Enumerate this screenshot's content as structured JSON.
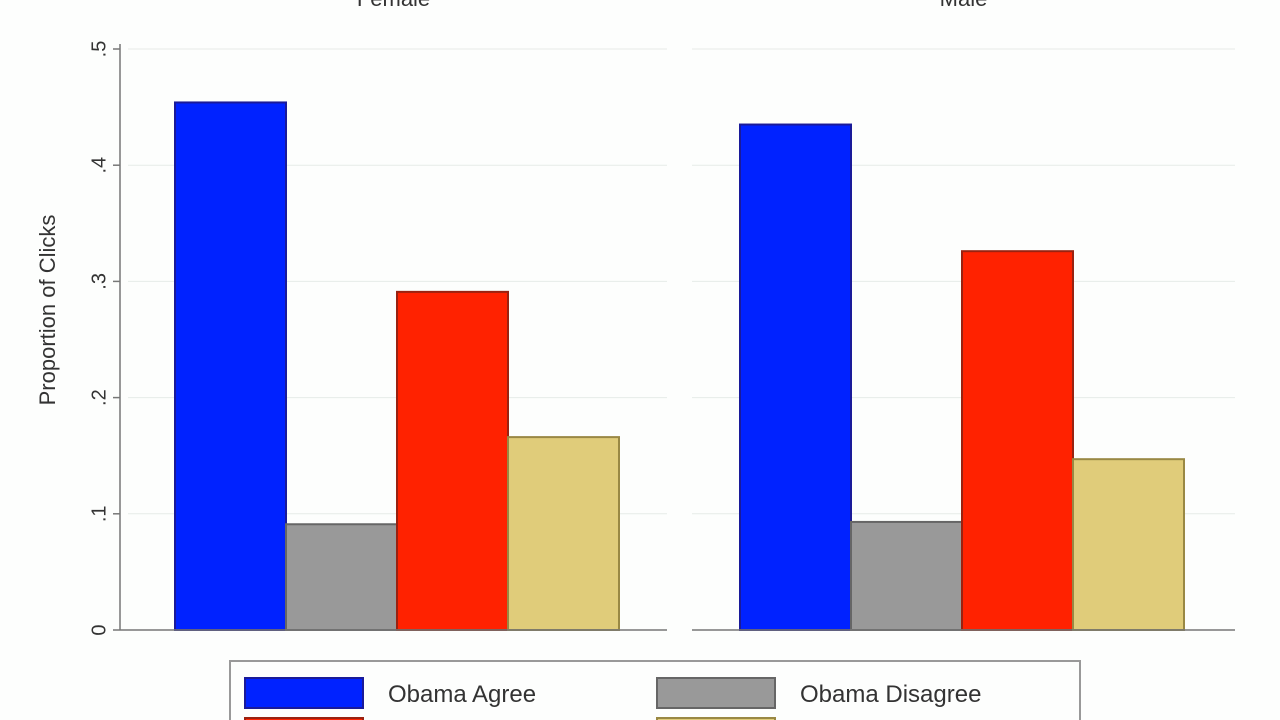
{
  "chart_data": {
    "type": "bar",
    "ylabel": "Proportion of Clicks",
    "ylim": [
      0,
      0.5
    ],
    "yticks": [
      {
        "value": 0,
        "label": "0"
      },
      {
        "value": 0.1,
        "label": ".1"
      },
      {
        "value": 0.2,
        "label": ".2"
      },
      {
        "value": 0.3,
        "label": ".3"
      },
      {
        "value": 0.4,
        "label": ".4"
      },
      {
        "value": 0.5,
        "label": ".5"
      }
    ],
    "grid": true,
    "legend_position": "bottom",
    "panels": [
      {
        "title": "Female",
        "values": [
          0.454,
          0.091,
          0.291,
          0.166
        ]
      },
      {
        "title": "Male",
        "values": [
          0.435,
          0.093,
          0.326,
          0.147
        ]
      }
    ],
    "series": [
      {
        "name": "Obama Agree",
        "color": "#0022ff",
        "border": "#1a1a99"
      },
      {
        "name": "Obama Disagree",
        "color": "#999999",
        "border": "#666666"
      },
      {
        "color": "#ff2200",
        "border": "#992211"
      },
      {
        "color": "#e0cc7a",
        "border": "#998844"
      }
    ]
  }
}
